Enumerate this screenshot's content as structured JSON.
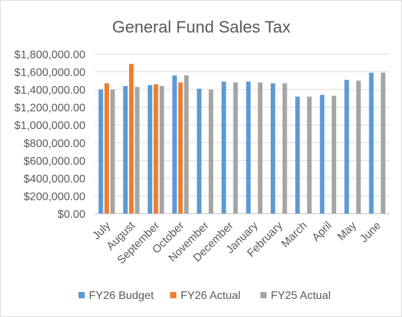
{
  "chart_data": {
    "type": "bar",
    "title": "General Fund Sales Tax",
    "xlabel": "",
    "ylabel": "",
    "ylim": [
      0,
      1800000
    ],
    "y_ticks": [
      0,
      200000,
      400000,
      600000,
      800000,
      1000000,
      1200000,
      1400000,
      1600000,
      1800000
    ],
    "y_tick_labels": [
      "$0.00",
      "$200,000.00",
      "$400,000.00",
      "$600,000.00",
      "$800,000.00",
      "$1,000,000.00",
      "$1,200,000.00",
      "$1,400,000.00",
      "$1,600,000.00",
      "$1,800,000.00"
    ],
    "grid": true,
    "legend_position": "bottom",
    "categories": [
      "July",
      "August",
      "September",
      "October",
      "November",
      "December",
      "January",
      "February",
      "March",
      "April",
      "May",
      "June"
    ],
    "series": [
      {
        "name": "FY26 Budget",
        "color": "#5B9BD5",
        "values": [
          1400000,
          1440000,
          1450000,
          1560000,
          1410000,
          1490000,
          1490000,
          1470000,
          1320000,
          1340000,
          1510000,
          1590000
        ]
      },
      {
        "name": "FY26 Actual",
        "color": "#ED7D31",
        "values": [
          1470000,
          1690000,
          1460000,
          1480000,
          null,
          null,
          null,
          null,
          null,
          null,
          null,
          null
        ]
      },
      {
        "name": "FY25 Actual",
        "color": "#A5A5A5",
        "values": [
          1400000,
          1430000,
          1440000,
          1560000,
          1400000,
          1480000,
          1480000,
          1470000,
          1320000,
          1330000,
          1500000,
          1590000
        ]
      }
    ]
  }
}
